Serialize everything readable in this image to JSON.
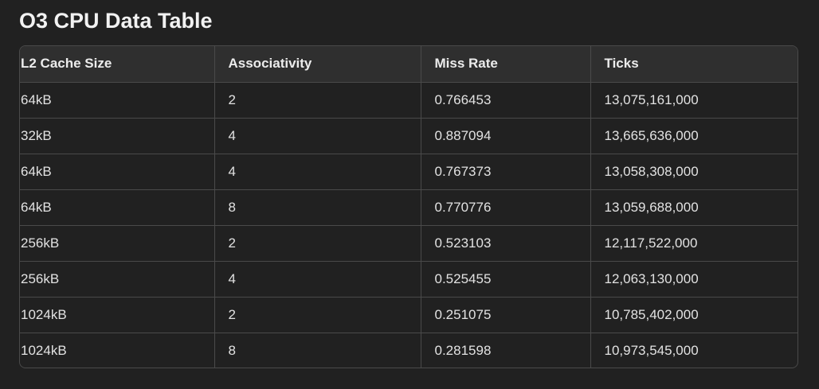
{
  "page": {
    "title": "O3 CPU Data Table"
  },
  "table": {
    "headers": [
      "L2 Cache Size",
      "Associativity",
      "Miss Rate",
      "Ticks"
    ],
    "rows": [
      [
        "64kB",
        "2",
        "0.766453",
        "13,075,161,000"
      ],
      [
        "32kB",
        "4",
        "0.887094",
        "13,665,636,000"
      ],
      [
        "64kB",
        "4",
        "0.767373",
        "13,058,308,000"
      ],
      [
        "64kB",
        "8",
        "0.770776",
        "13,059,688,000"
      ],
      [
        "256kB",
        "2",
        "0.523103",
        "12,117,522,000"
      ],
      [
        "256kB",
        "4",
        "0.525455",
        "12,063,130,000"
      ],
      [
        "1024kB",
        "2",
        "0.251075",
        "10,785,402,000"
      ],
      [
        "1024kB",
        "8",
        "0.281598",
        "10,973,545,000"
      ]
    ]
  },
  "colors": {
    "background": "#212121",
    "header_background": "#2f2f2f",
    "border": "#4a4a4a",
    "text": "#ececec"
  }
}
